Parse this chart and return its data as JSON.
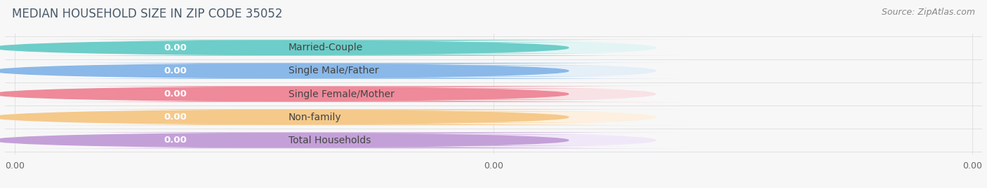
{
  "title": "MEDIAN HOUSEHOLD SIZE IN ZIP CODE 35052",
  "source": "Source: ZipAtlas.com",
  "categories": [
    "Married-Couple",
    "Single Male/Father",
    "Single Female/Mother",
    "Non-family",
    "Total Households"
  ],
  "values": [
    0.0,
    0.0,
    0.0,
    0.0,
    0.0
  ],
  "bar_colors": [
    "#6dcdc8",
    "#8ab8e8",
    "#ee8a9a",
    "#f5c98a",
    "#c4a0d8"
  ],
  "bar_bg_colors": [
    "#e2f5f4",
    "#e4eff8",
    "#f8e2e5",
    "#fdf0e0",
    "#f0e8f8"
  ],
  "figsize": [
    14.06,
    2.69
  ],
  "dpi": 100,
  "background_color": "#f7f7f7",
  "title_fontsize": 12,
  "source_fontsize": 9,
  "label_fontsize": 10,
  "value_fontsize": 9.5,
  "bar_height": 0.7,
  "bar_width": 0.195,
  "n_bars": 5
}
